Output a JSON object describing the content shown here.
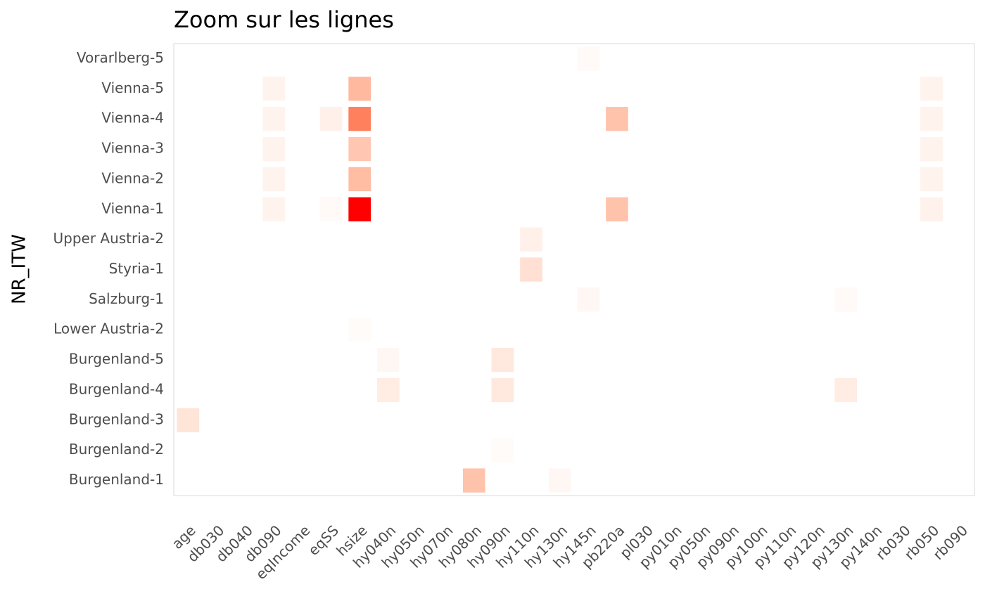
{
  "chart_data": {
    "type": "heatmap",
    "title": "Zoom sur les lignes",
    "y_label": "NR_ITW",
    "x_categories": [
      "age",
      "db030",
      "db040",
      "db090",
      "eqIncome",
      "eqSS",
      "hsize",
      "hy040n",
      "hy050n",
      "hy070n",
      "hy080n",
      "hy090n",
      "hy110n",
      "hy130n",
      "hy145n",
      "pb220a",
      "pl030",
      "py010n",
      "py050n",
      "py090n",
      "py100n",
      "py110n",
      "py120n",
      "py130n",
      "py140n",
      "rb030",
      "rb050",
      "rb090"
    ],
    "y_categories": [
      "Burgenland-1",
      "Burgenland-2",
      "Burgenland-3",
      "Burgenland-4",
      "Burgenland-5",
      "Lower Austria-2",
      "Salzburg-1",
      "Styria-1",
      "Upper Austria-2",
      "Vienna-1",
      "Vienna-2",
      "Vienna-3",
      "Vienna-4",
      "Vienna-5",
      "Vorarlberg-5"
    ],
    "low_color": "#ffffff",
    "high_color": "#ff0000",
    "values": [
      [
        0,
        0,
        0,
        0,
        0,
        0,
        0,
        0,
        0,
        0,
        0.3,
        0,
        0,
        0.04,
        0,
        0,
        0,
        0,
        0,
        0,
        0,
        0,
        0,
        0,
        0,
        0,
        0,
        0
      ],
      [
        0,
        0,
        0,
        0,
        0,
        0,
        0,
        0,
        0,
        0,
        0,
        0.02,
        0,
        0,
        0,
        0,
        0,
        0,
        0,
        0,
        0,
        0,
        0,
        0,
        0,
        0,
        0,
        0
      ],
      [
        0.14,
        0,
        0,
        0,
        0,
        0,
        0,
        0,
        0,
        0,
        0,
        0,
        0,
        0,
        0,
        0,
        0,
        0,
        0,
        0,
        0,
        0,
        0,
        0,
        0,
        0,
        0,
        0
      ],
      [
        0,
        0,
        0,
        0,
        0,
        0,
        0,
        0.1,
        0,
        0,
        0,
        0.12,
        0,
        0,
        0,
        0,
        0,
        0,
        0,
        0,
        0,
        0,
        0,
        0.1,
        0,
        0,
        0,
        0
      ],
      [
        0,
        0,
        0,
        0,
        0,
        0,
        0,
        0.04,
        0,
        0,
        0,
        0.12,
        0,
        0,
        0,
        0,
        0,
        0,
        0,
        0,
        0,
        0,
        0,
        0,
        0,
        0,
        0,
        0
      ],
      [
        0,
        0,
        0,
        0,
        0,
        0,
        0.02,
        0,
        0,
        0,
        0,
        0,
        0,
        0,
        0,
        0,
        0,
        0,
        0,
        0,
        0,
        0,
        0,
        0,
        0,
        0,
        0,
        0
      ],
      [
        0,
        0,
        0,
        0,
        0,
        0,
        0,
        0,
        0,
        0,
        0,
        0,
        0,
        0,
        0.04,
        0,
        0,
        0,
        0,
        0,
        0,
        0,
        0,
        0.03,
        0,
        0,
        0,
        0
      ],
      [
        0,
        0,
        0,
        0,
        0,
        0,
        0,
        0,
        0,
        0,
        0,
        0,
        0.16,
        0,
        0,
        0,
        0,
        0,
        0,
        0,
        0,
        0,
        0,
        0,
        0,
        0,
        0,
        0
      ],
      [
        0,
        0,
        0,
        0,
        0,
        0,
        0,
        0,
        0,
        0,
        0,
        0,
        0.08,
        0,
        0,
        0,
        0,
        0,
        0,
        0,
        0,
        0,
        0,
        0,
        0,
        0,
        0,
        0
      ],
      [
        0,
        0,
        0,
        0.06,
        0,
        0.03,
        1,
        0,
        0,
        0,
        0,
        0,
        0,
        0,
        0,
        0.3,
        0,
        0,
        0,
        0,
        0,
        0,
        0,
        0,
        0,
        0,
        0.07,
        0
      ],
      [
        0,
        0,
        0,
        0.06,
        0,
        0,
        0.33,
        0,
        0,
        0,
        0,
        0,
        0,
        0,
        0,
        0,
        0,
        0,
        0,
        0,
        0,
        0,
        0,
        0,
        0,
        0,
        0.06,
        0
      ],
      [
        0,
        0,
        0,
        0.06,
        0,
        0,
        0.28,
        0,
        0,
        0,
        0,
        0,
        0,
        0,
        0,
        0,
        0,
        0,
        0,
        0,
        0,
        0,
        0,
        0,
        0,
        0,
        0.06,
        0
      ],
      [
        0,
        0,
        0,
        0.06,
        0,
        0.08,
        0.6,
        0,
        0,
        0,
        0,
        0,
        0,
        0,
        0,
        0.3,
        0,
        0,
        0,
        0,
        0,
        0,
        0,
        0,
        0,
        0,
        0.06,
        0
      ],
      [
        0,
        0,
        0,
        0.06,
        0,
        0,
        0.35,
        0,
        0,
        0,
        0,
        0,
        0,
        0,
        0,
        0,
        0,
        0,
        0,
        0,
        0,
        0,
        0,
        0,
        0,
        0,
        0.06,
        0
      ],
      [
        0,
        0,
        0,
        0,
        0,
        0,
        0,
        0,
        0,
        0,
        0,
        0,
        0,
        0,
        0.03,
        0,
        0,
        0,
        0,
        0,
        0,
        0,
        0,
        0,
        0,
        0,
        0,
        0
      ]
    ]
  }
}
